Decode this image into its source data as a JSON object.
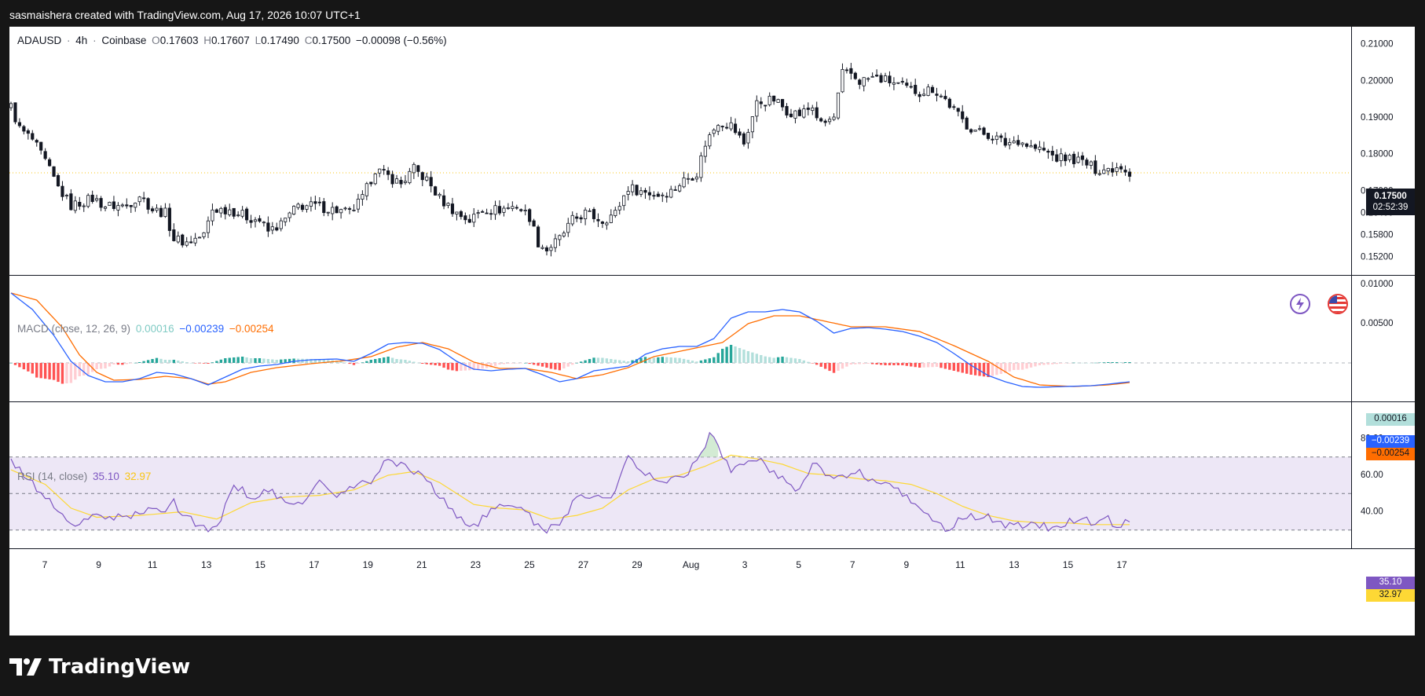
{
  "header": {
    "attribution": "sasmaishera created with TradingView.com, Aug 17, 2026 10:07 UTC+1"
  },
  "footer": {
    "brand": "TradingView"
  },
  "legend": {
    "symbol": "ADAUSD",
    "sep1": "·",
    "interval": "4h",
    "sep2": "·",
    "exchange": "Coinbase",
    "o_label": "O",
    "o": "0.17603",
    "h_label": "H",
    "h": "0.17607",
    "l_label": "L",
    "l": "0.17490",
    "c_label": "C",
    "c": "0.17500",
    "change": "−0.00098 (−0.56%)"
  },
  "macd_legend": {
    "label": "MACD (close, 12, 26, 9)",
    "hist": "0.00016",
    "macd": "−0.00239",
    "signal": "−0.00254"
  },
  "rsi_legend": {
    "label": "RSI (14, close)",
    "rsi": "35.10",
    "ma": "32.97"
  },
  "tags": {
    "price": "0.17500",
    "countdown": "02:52:39",
    "hist": "0.00016",
    "macd": "−0.00239",
    "signal": "−0.00254",
    "rsi": "35.10",
    "rsi_ma": "32.97"
  },
  "colors": {
    "up": "#ffffff",
    "down": "#131722",
    "macd_line": "#2962ff",
    "signal_line": "#ff6d00",
    "hist_pos_strong": "#26a69a",
    "hist_pos_weak": "#b2dfdb",
    "hist_neg_strong": "#ff5252",
    "hist_neg_weak": "#ffcdd2",
    "rsi_line": "#7e57c2",
    "rsi_ma": "#fdd835",
    "rsi_band": "#ede7f6"
  },
  "chart_data": [
    {
      "type": "candlestick",
      "symbol": "ADAUSD",
      "interval": "4h",
      "ylim": [
        0.148,
        0.214
      ],
      "y_ticks": [
        "0.21000",
        "0.20000",
        "0.19000",
        "0.18000",
        "0.17000",
        "0.16400",
        "0.15800",
        "0.15200"
      ],
      "y_tick_values": [
        0.21,
        0.2,
        0.19,
        0.18,
        0.17,
        0.164,
        0.158,
        0.152
      ],
      "x_ticks": [
        "7",
        "9",
        "11",
        "13",
        "15",
        "17",
        "19",
        "21",
        "23",
        "25",
        "27",
        "29",
        "Aug",
        "3",
        "5",
        "7",
        "9",
        "11",
        "13",
        "15",
        "17"
      ],
      "last_price": 0.175,
      "anchors": [
        [
          0,
          0.193
        ],
        [
          2,
          0.187
        ],
        [
          5,
          0.184
        ],
        [
          8,
          0.178
        ],
        [
          11,
          0.171
        ],
        [
          14,
          0.166
        ],
        [
          19,
          0.168
        ],
        [
          22,
          0.166
        ],
        [
          27,
          0.166
        ],
        [
          30,
          0.169
        ],
        [
          33,
          0.165
        ],
        [
          36,
          0.164
        ],
        [
          38,
          0.157
        ],
        [
          41,
          0.156
        ],
        [
          45,
          0.158
        ],
        [
          47,
          0.165
        ],
        [
          51,
          0.165
        ],
        [
          55,
          0.163
        ],
        [
          58,
          0.162
        ],
        [
          60,
          0.159
        ],
        [
          63,
          0.161
        ],
        [
          67,
          0.166
        ],
        [
          71,
          0.166
        ],
        [
          75,
          0.165
        ],
        [
          79,
          0.164
        ],
        [
          82,
          0.168
        ],
        [
          85,
          0.176
        ],
        [
          88,
          0.174
        ],
        [
          91,
          0.172
        ],
        [
          94,
          0.176
        ],
        [
          97,
          0.173
        ],
        [
          100,
          0.168
        ],
        [
          104,
          0.164
        ],
        [
          107,
          0.162
        ],
        [
          110,
          0.165
        ],
        [
          114,
          0.165
        ],
        [
          118,
          0.166
        ],
        [
          121,
          0.163
        ],
        [
          123,
          0.156
        ],
        [
          125,
          0.154
        ],
        [
          128,
          0.157
        ],
        [
          131,
          0.162
        ],
        [
          134,
          0.164
        ],
        [
          138,
          0.162
        ],
        [
          141,
          0.164
        ],
        [
          144,
          0.171
        ],
        [
          147,
          0.17
        ],
        [
          151,
          0.169
        ],
        [
          154,
          0.17
        ],
        [
          157,
          0.173
        ],
        [
          160,
          0.175
        ],
        [
          162,
          0.183
        ],
        [
          165,
          0.189
        ],
        [
          168,
          0.188
        ],
        [
          171,
          0.183
        ],
        [
          174,
          0.194
        ],
        [
          178,
          0.195
        ],
        [
          181,
          0.192
        ],
        [
          184,
          0.191
        ],
        [
          187,
          0.193
        ],
        [
          189,
          0.188
        ],
        [
          192,
          0.19
        ],
        [
          194,
          0.202
        ],
        [
          196,
          0.202
        ],
        [
          198,
          0.2
        ],
        [
          201,
          0.201
        ],
        [
          205,
          0.2
        ],
        [
          209,
          0.198
        ],
        [
          212,
          0.197
        ],
        [
          215,
          0.198
        ],
        [
          218,
          0.195
        ],
        [
          220,
          0.192
        ],
        [
          223,
          0.188
        ],
        [
          226,
          0.186
        ],
        [
          229,
          0.185
        ],
        [
          232,
          0.183
        ],
        [
          235,
          0.184
        ],
        [
          238,
          0.182
        ],
        [
          241,
          0.181
        ],
        [
          244,
          0.179
        ],
        [
          247,
          0.179
        ],
        [
          250,
          0.178
        ],
        [
          253,
          0.176
        ],
        [
          256,
          0.176
        ],
        [
          259,
          0.177
        ],
        [
          261,
          0.175
        ]
      ]
    },
    {
      "type": "line+histogram",
      "name": "MACD (close, 12, 26, 9)",
      "ylim": [
        -0.0048,
        0.011
      ],
      "y_ticks": [
        "0.01000",
        "0.00500"
      ],
      "y_tick_values": [
        0.01,
        0.005
      ],
      "macd_anchors": [
        [
          0,
          0.0089
        ],
        [
          5,
          0.0068
        ],
        [
          10,
          0.0035
        ],
        [
          14,
          0.0002
        ],
        [
          18,
          -0.0016
        ],
        [
          22,
          -0.0024
        ],
        [
          26,
          -0.0024
        ],
        [
          30,
          -0.002
        ],
        [
          34,
          -0.0012
        ],
        [
          38,
          -0.0014
        ],
        [
          42,
          -0.002
        ],
        [
          46,
          -0.0028
        ],
        [
          50,
          -0.0018
        ],
        [
          54,
          -0.0008
        ],
        [
          58,
          -0.0004
        ],
        [
          62,
          -0.0002
        ],
        [
          66,
          0.0002
        ],
        [
          70,
          0.0004
        ],
        [
          76,
          0.0005
        ],
        [
          80,
          0.0002
        ],
        [
          84,
          0.0012
        ],
        [
          88,
          0.0024
        ],
        [
          92,
          0.0026
        ],
        [
          96,
          0.0025
        ],
        [
          100,
          0.0017
        ],
        [
          104,
          0.0002
        ],
        [
          108,
          -0.0008
        ],
        [
          112,
          -0.001
        ],
        [
          116,
          -0.0008
        ],
        [
          120,
          -0.0007
        ],
        [
          124,
          -0.0015
        ],
        [
          128,
          -0.0024
        ],
        [
          132,
          -0.002
        ],
        [
          136,
          -0.001
        ],
        [
          140,
          -0.0007
        ],
        [
          144,
          -0.0004
        ],
        [
          148,
          0.0011
        ],
        [
          152,
          0.0018
        ],
        [
          156,
          0.0021
        ],
        [
          160,
          0.0021
        ],
        [
          164,
          0.0031
        ],
        [
          168,
          0.0057
        ],
        [
          172,
          0.0065
        ],
        [
          176,
          0.0065
        ],
        [
          180,
          0.0068
        ],
        [
          184,
          0.0065
        ],
        [
          188,
          0.0053
        ],
        [
          192,
          0.0038
        ],
        [
          196,
          0.0044
        ],
        [
          200,
          0.0045
        ],
        [
          204,
          0.0043
        ],
        [
          208,
          0.004
        ],
        [
          212,
          0.0034
        ],
        [
          216,
          0.0026
        ],
        [
          220,
          0.0012
        ],
        [
          224,
          -0.0003
        ],
        [
          228,
          -0.0016
        ],
        [
          232,
          -0.0024
        ],
        [
          236,
          -0.003
        ],
        [
          240,
          -0.0031
        ],
        [
          246,
          -0.003
        ],
        [
          252,
          -0.0029
        ],
        [
          256,
          -0.0027
        ],
        [
          261,
          -0.0024
        ]
      ],
      "signal_anchors": [
        [
          0,
          0.0089
        ],
        [
          6,
          0.008
        ],
        [
          12,
          0.0045
        ],
        [
          16,
          0.001
        ],
        [
          20,
          -0.0012
        ],
        [
          24,
          -0.0022
        ],
        [
          30,
          -0.0021
        ],
        [
          36,
          -0.0017
        ],
        [
          42,
          -0.002
        ],
        [
          46,
          -0.0027
        ],
        [
          50,
          -0.0024
        ],
        [
          56,
          -0.0012
        ],
        [
          62,
          -0.0006
        ],
        [
          70,
          -0.0001
        ],
        [
          78,
          0.0003
        ],
        [
          84,
          0.0008
        ],
        [
          90,
          0.002
        ],
        [
          96,
          0.0026
        ],
        [
          102,
          0.0018
        ],
        [
          108,
          0.0001
        ],
        [
          114,
          -0.0007
        ],
        [
          120,
          -0.0007
        ],
        [
          126,
          -0.0012
        ],
        [
          132,
          -0.002
        ],
        [
          138,
          -0.0015
        ],
        [
          144,
          -0.0006
        ],
        [
          150,
          0.0008
        ],
        [
          158,
          0.0017
        ],
        [
          166,
          0.0026
        ],
        [
          172,
          0.005
        ],
        [
          178,
          0.006
        ],
        [
          184,
          0.006
        ],
        [
          190,
          0.0053
        ],
        [
          196,
          0.0046
        ],
        [
          204,
          0.0046
        ],
        [
          212,
          0.004
        ],
        [
          220,
          0.0022
        ],
        [
          228,
          0.0002
        ],
        [
          234,
          -0.0018
        ],
        [
          240,
          -0.0028
        ],
        [
          248,
          -0.003
        ],
        [
          256,
          -0.0028
        ],
        [
          261,
          -0.0025
        ]
      ],
      "last": {
        "histogram": 0.00016,
        "macd": -0.00239,
        "signal": -0.00254
      }
    },
    {
      "type": "line",
      "name": "RSI (14, close)",
      "ylim": [
        20,
        100
      ],
      "y_ticks": [
        "80.00",
        "60.00",
        "40.00"
      ],
      "y_tick_values": [
        80,
        60,
        40
      ],
      "bands": {
        "upper": 70,
        "middle": 50,
        "lower": 30
      },
      "rsi_anchors": [
        [
          0,
          67
        ],
        [
          4,
          58
        ],
        [
          8,
          48
        ],
        [
          12,
          38
        ],
        [
          16,
          32
        ],
        [
          20,
          39
        ],
        [
          24,
          36
        ],
        [
          28,
          38
        ],
        [
          32,
          40
        ],
        [
          36,
          42
        ],
        [
          38,
          47
        ],
        [
          40,
          38
        ],
        [
          44,
          33
        ],
        [
          48,
          30
        ],
        [
          52,
          55
        ],
        [
          56,
          48
        ],
        [
          60,
          52
        ],
        [
          64,
          44
        ],
        [
          68,
          46
        ],
        [
          72,
          56
        ],
        [
          76,
          48
        ],
        [
          80,
          54
        ],
        [
          84,
          56
        ],
        [
          88,
          70
        ],
        [
          92,
          64
        ],
        [
          96,
          61
        ],
        [
          100,
          48
        ],
        [
          104,
          38
        ],
        [
          108,
          32
        ],
        [
          112,
          40
        ],
        [
          116,
          44
        ],
        [
          120,
          42
        ],
        [
          124,
          28
        ],
        [
          128,
          34
        ],
        [
          132,
          48
        ],
        [
          136,
          50
        ],
        [
          140,
          46
        ],
        [
          144,
          70
        ],
        [
          148,
          60
        ],
        [
          152,
          58
        ],
        [
          156,
          58
        ],
        [
          160,
          67
        ],
        [
          163,
          82
        ],
        [
          165,
          76
        ],
        [
          168,
          61
        ],
        [
          172,
          70
        ],
        [
          176,
          66
        ],
        [
          180,
          58
        ],
        [
          184,
          52
        ],
        [
          187,
          68
        ],
        [
          190,
          60
        ],
        [
          194,
          58
        ],
        [
          198,
          61
        ],
        [
          202,
          56
        ],
        [
          206,
          52
        ],
        [
          210,
          47
        ],
        [
          214,
          38
        ],
        [
          218,
          30
        ],
        [
          222,
          36
        ],
        [
          226,
          38
        ],
        [
          230,
          35
        ],
        [
          234,
          32
        ],
        [
          238,
          34
        ],
        [
          242,
          31
        ],
        [
          246,
          34
        ],
        [
          250,
          38
        ],
        [
          252,
          32
        ],
        [
          255,
          37
        ],
        [
          258,
          33
        ],
        [
          261,
          35.1
        ]
      ],
      "ma_anchors": [
        [
          0,
          63
        ],
        [
          8,
          55
        ],
        [
          14,
          42
        ],
        [
          20,
          37
        ],
        [
          30,
          38
        ],
        [
          40,
          40
        ],
        [
          48,
          36
        ],
        [
          56,
          45
        ],
        [
          64,
          48
        ],
        [
          72,
          49
        ],
        [
          80,
          52
        ],
        [
          88,
          60
        ],
        [
          94,
          62
        ],
        [
          100,
          56
        ],
        [
          108,
          44
        ],
        [
          114,
          42
        ],
        [
          120,
          41
        ],
        [
          126,
          36
        ],
        [
          132,
          38
        ],
        [
          138,
          42
        ],
        [
          144,
          52
        ],
        [
          150,
          58
        ],
        [
          156,
          60
        ],
        [
          162,
          65
        ],
        [
          168,
          71
        ],
        [
          174,
          69
        ],
        [
          180,
          66
        ],
        [
          186,
          61
        ],
        [
          192,
          60
        ],
        [
          198,
          58
        ],
        [
          204,
          57
        ],
        [
          210,
          55
        ],
        [
          216,
          50
        ],
        [
          222,
          43
        ],
        [
          228,
          38
        ],
        [
          234,
          35
        ],
        [
          240,
          34
        ],
        [
          246,
          34
        ],
        [
          252,
          33
        ],
        [
          261,
          32.97
        ]
      ]
    }
  ]
}
